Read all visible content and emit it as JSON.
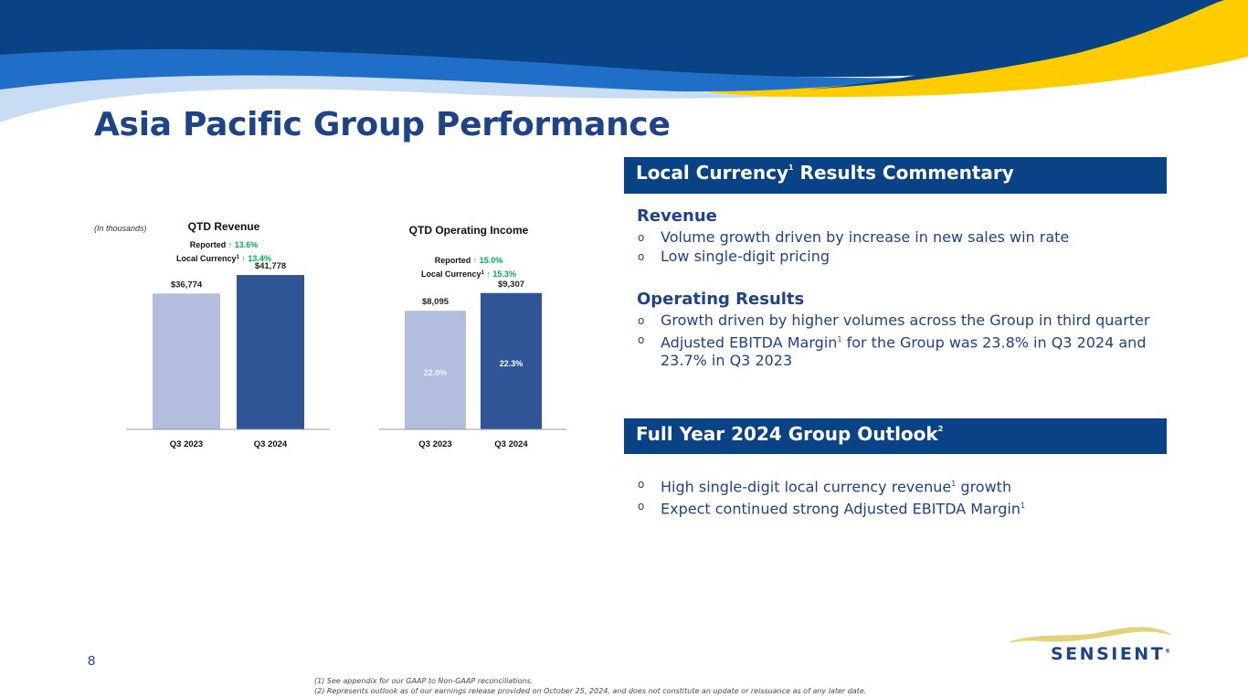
{
  "slide": {
    "title": "Asia Pacific Group Performance",
    "page_number": "8",
    "logo_text": "SENSIENT",
    "logo_mark": "®",
    "colors": {
      "navy": "#0a4385",
      "mid_blue": "#1e6fc8",
      "light_blue": "#c7dcf2",
      "yellow": "#ffcc00",
      "bar_light": "#b3bedf",
      "bar_dark": "#2f5597",
      "green": "#00b050"
    }
  },
  "chart_data": [
    {
      "type": "bar",
      "note": "(In thousands)",
      "title": "QTD Revenue",
      "categories": [
        "Q3 2023",
        "Q3 2024"
      ],
      "values": [
        36774,
        41778
      ],
      "value_labels": [
        "$36,774",
        "$41,778"
      ],
      "inner_labels": [
        "",
        ""
      ],
      "growth": [
        {
          "label": "Reported",
          "arrow": "🡡",
          "value": "13.6%"
        },
        {
          "label": "Local Currency",
          "sup": "1",
          "arrow": "🡡",
          "value": "13.4%"
        }
      ],
      "ylim": [
        0,
        46000
      ]
    },
    {
      "type": "bar",
      "note": "",
      "title": "QTD Operating Income",
      "categories": [
        "Q3 2023",
        "Q3 2024"
      ],
      "values": [
        8095,
        9307
      ],
      "value_labels": [
        "$8,095",
        "$9,307"
      ],
      "inner_labels": [
        "22.0%",
        "22.3%"
      ],
      "growth": [
        {
          "label": "Reported",
          "arrow": "🡡",
          "value": "15.0%"
        },
        {
          "label": "Local Currency",
          "sup": "1",
          "arrow": "🡡",
          "value": "15.3%"
        }
      ],
      "ylim": [
        0,
        11600
      ]
    }
  ],
  "commentary": {
    "header_main": "Local Currency",
    "header_sup": "1",
    "header_rest": " Results Commentary",
    "revenue_title": "Revenue",
    "revenue_items": [
      {
        "text": "Volume growth driven by increase in new sales win rate"
      },
      {
        "text": "Low single-digit pricing"
      }
    ],
    "operating_title": "Operating Results",
    "operating_items": [
      {
        "text": "Growth driven by higher volumes across the Group in third quarter"
      },
      {
        "text_before": "Adjusted EBITDA Margin",
        "sup": "1",
        "text_after": " for the Group was 23.8% in Q3 2024 and 23.7% in Q3 2023"
      }
    ]
  },
  "outlook": {
    "header_main": "Full Year 2024 Group Outlook",
    "header_sup": "2",
    "items": [
      {
        "text_before": "High single-digit local currency revenue",
        "sup": "1",
        "text_after": " growth"
      },
      {
        "text_before": "Expect continued strong Adjusted EBITDA Margin",
        "sup": "1",
        "text_after": ""
      }
    ]
  },
  "bullet_glyph": "o",
  "footnotes": [
    "(1) See appendix for our GAAP to Non-GAAP reconciliations.",
    "(2) Represents outlook as of our earnings release provided on October 25, 2024, and does not constitute an update or reissuance as of any later date."
  ]
}
